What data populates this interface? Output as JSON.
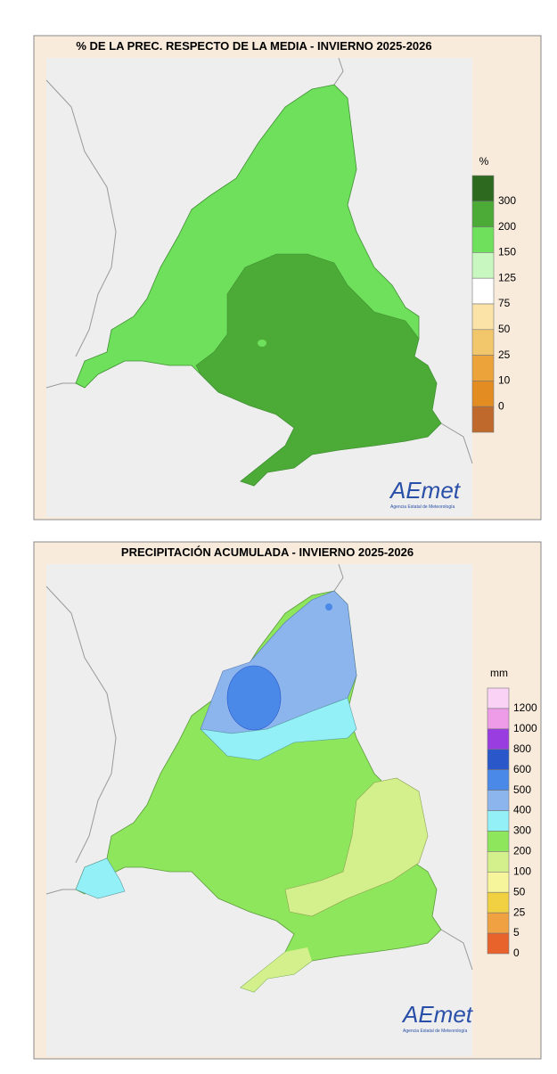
{
  "maps": [
    {
      "title": "% DE LA PREC. RESPECTO DE LA MEDIA - INVIERNO 2025-2026",
      "legend": {
        "unit": "%",
        "colors": [
          "#2d6a1f",
          "#4caa37",
          "#6fe05b",
          "#c9f7c0",
          "#ffffff",
          "#fbe3a8",
          "#f2c66a",
          "#eca43a",
          "#e38c22",
          "#bf6a2c"
        ],
        "labels": [
          "300",
          "200",
          "150",
          "125",
          "75",
          "50",
          "25",
          "10",
          "0"
        ]
      },
      "logo": {
        "name": "AEmet",
        "subtitle": "Agencia Estatal de Meteorología"
      }
    },
    {
      "title": "PRECIPITACIÓN ACUMULADA - INVIERNO 2025-2026",
      "legend": {
        "unit": "mm",
        "colors": [
          "#f9d2f5",
          "#ee9be8",
          "#9a3de0",
          "#2a57c9",
          "#4b89e8",
          "#8cb5ee",
          "#92f0f6",
          "#8ee65c",
          "#d4f08c",
          "#f7f59c",
          "#f1d142",
          "#f0a242",
          "#e8622b"
        ],
        "labels": [
          "1200",
          "1000",
          "800",
          "600",
          "500",
          "400",
          "300",
          "200",
          "100",
          "50",
          "25",
          "5",
          "0"
        ]
      },
      "logo": {
        "name": "AEmet",
        "subtitle": "Agencia Estatal de Meteorología"
      }
    }
  ]
}
